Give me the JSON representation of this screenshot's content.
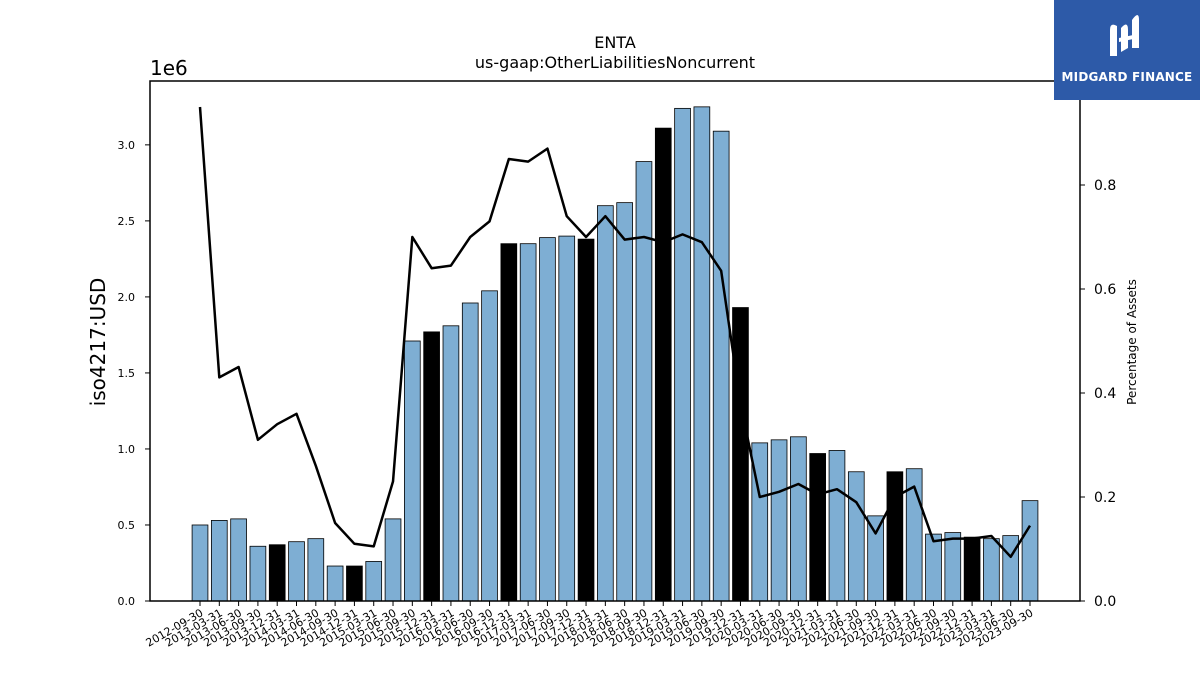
{
  "logo": {
    "text": "MIDGARD FINANCE",
    "icon": "mf-monogram-icon",
    "background": "#2d5aa8"
  },
  "chart_data": {
    "type": "bar",
    "title": "ENTA",
    "subtitle": "us-gaap:OtherLiabilitiesNoncurrent",
    "ylabel": "iso4217:USD",
    "y2label": "Percentage of Assets",
    "y_multiplier": "1e6",
    "ylim": [
      0,
      3.42
    ],
    "y2lim": [
      0,
      1.0
    ],
    "yticks": [
      "0.0",
      "0.5",
      "1.0",
      "1.5",
      "2.0",
      "2.5",
      "3.0"
    ],
    "y2ticks": [
      "0.0",
      "0.2",
      "0.4",
      "0.6",
      "0.8"
    ],
    "colors": {
      "bar": "#7eaed3",
      "bar_highlight": "#000000",
      "line": "#000000"
    },
    "categories": [
      "2012-09-30",
      "2013-03-31",
      "2013-06-30",
      "2013-09-30",
      "2013-12-31",
      "2014-03-31",
      "2014-06-30",
      "2014-09-30",
      "2014-12-31",
      "2015-03-31",
      "2015-06-30",
      "2015-09-30",
      "2015-12-31",
      "2016-03-31",
      "2016-06-30",
      "2016-09-30",
      "2016-12-31",
      "2017-03-31",
      "2017-06-30",
      "2017-09-30",
      "2017-12-31",
      "2018-03-31",
      "2018-06-30",
      "2018-09-30",
      "2018-12-31",
      "2019-03-31",
      "2019-06-30",
      "2019-09-30",
      "2019-12-31",
      "2020-03-31",
      "2020-06-30",
      "2020-09-30",
      "2020-12-31",
      "2021-03-31",
      "2021-06-30",
      "2021-09-30",
      "2021-12-31",
      "2022-03-31",
      "2022-06-30",
      "2022-09-30",
      "2022-12-31",
      "2023-03-31",
      "2023-06-30",
      "2023-09-30"
    ],
    "series": [
      {
        "values": [
          0.5,
          0.53,
          0.54,
          0.36,
          0.37,
          0.39,
          0.41,
          0.23,
          0.23,
          0.26,
          0.54,
          1.71,
          1.77,
          1.81,
          1.96,
          2.04,
          2.35,
          2.35,
          2.39,
          2.4,
          2.38,
          2.6,
          2.62,
          2.89,
          3.11,
          3.24,
          3.25,
          3.09,
          1.93,
          1.04,
          1.06,
          1.08,
          0.97,
          0.99,
          0.85,
          0.56,
          0.85,
          0.87,
          0.44,
          0.45,
          0.42,
          0.41,
          0.43,
          0.66
        ],
        "highlight": [
          false,
          false,
          false,
          false,
          true,
          false,
          false,
          false,
          true,
          false,
          false,
          false,
          true,
          false,
          false,
          false,
          true,
          false,
          false,
          false,
          true,
          false,
          false,
          false,
          true,
          false,
          false,
          false,
          true,
          false,
          false,
          false,
          true,
          false,
          false,
          false,
          true,
          false,
          false,
          false,
          true,
          false,
          false,
          false
        ]
      },
      {
        "axis": "right",
        "type": "line",
        "values": [
          0.95,
          0.43,
          0.45,
          0.31,
          0.34,
          0.36,
          0.26,
          0.15,
          0.11,
          0.105,
          0.23,
          0.7,
          0.64,
          0.645,
          0.7,
          0.73,
          0.85,
          0.845,
          0.87,
          0.74,
          0.7,
          0.74,
          0.695,
          0.7,
          0.69,
          0.705,
          0.69,
          0.635,
          0.38,
          0.2,
          0.21,
          0.225,
          0.205,
          0.215,
          0.19,
          0.13,
          0.2,
          0.22,
          0.115,
          0.12,
          0.12,
          0.125,
          0.085,
          0.145
        ]
      }
    ]
  }
}
